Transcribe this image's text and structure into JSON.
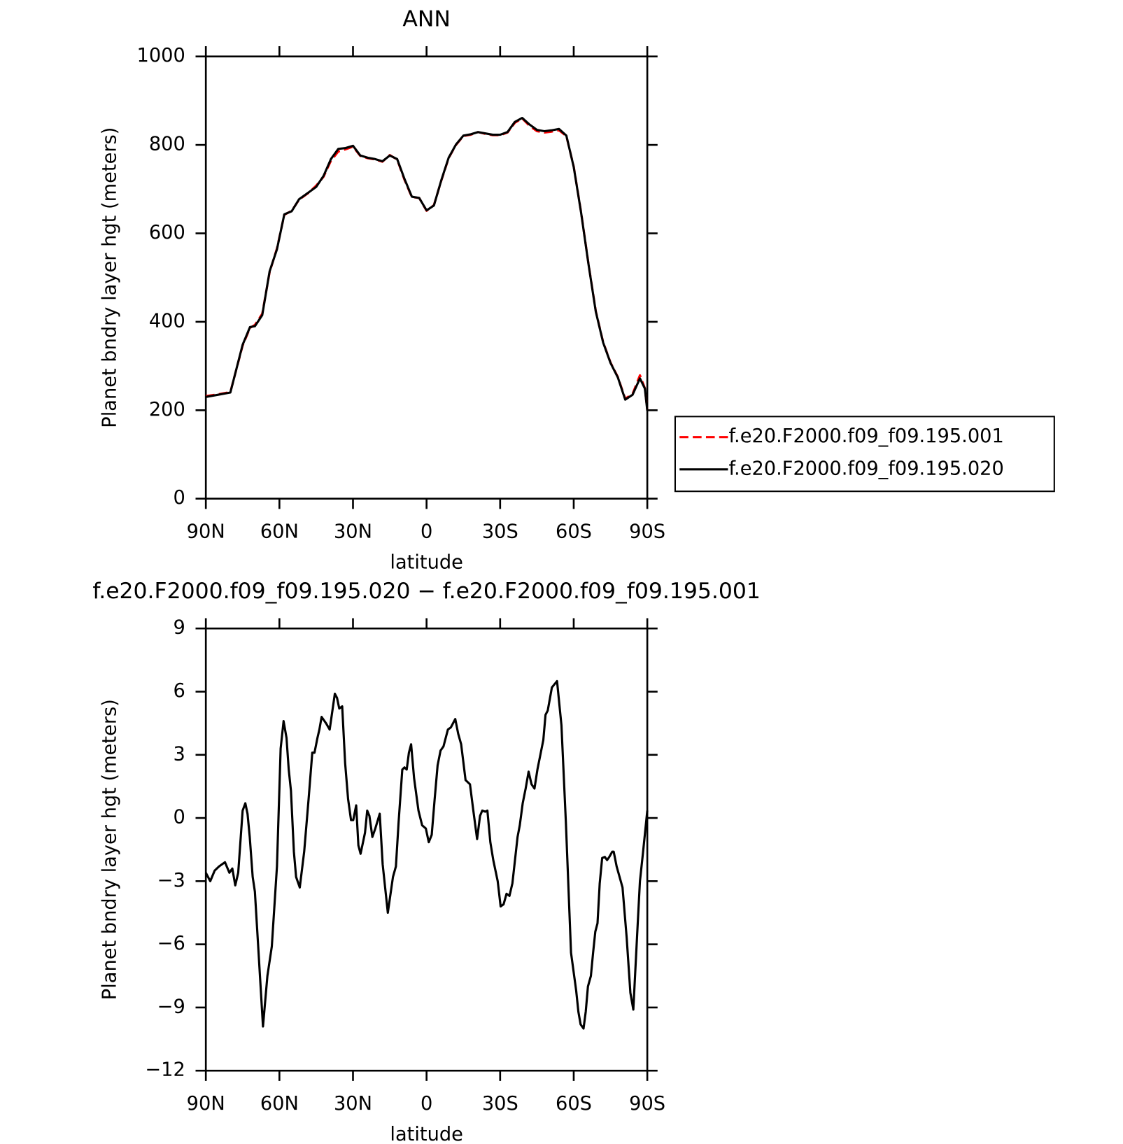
{
  "chart_data": [
    {
      "type": "line",
      "title": "ANN",
      "xlabel": "latitude",
      "ylabel": "Planet bndry layer hgt (meters)",
      "x": [
        90,
        85,
        80,
        75,
        72,
        70,
        67,
        64,
        61,
        58,
        55,
        52,
        48,
        45,
        42,
        39,
        36,
        33,
        30,
        27,
        24,
        21,
        18,
        15,
        12,
        9,
        6,
        3,
        0,
        -3,
        -6,
        -9,
        -12,
        -15,
        -18,
        -21,
        -24,
        -27,
        -30,
        -33,
        -36,
        -39,
        -42,
        -45,
        -48,
        -51,
        -54,
        -57,
        -60,
        -63,
        -66,
        -69,
        -72,
        -75,
        -78,
        -81,
        -84,
        -87,
        -89,
        -90
      ],
      "series": [
        {
          "name": "f.e20.F2000.f09_f09.195.001",
          "color": "#ff0000",
          "line_style": "dashed",
          "values": [
            232,
            236,
            241,
            346,
            386,
            393,
            418,
            512,
            566,
            642,
            651,
            676,
            692,
            708,
            728,
            764,
            785,
            790,
            796,
            775,
            770,
            767,
            762,
            777,
            767,
            721,
            682,
            680,
            651,
            664,
            719,
            770,
            800,
            820,
            823,
            829,
            825,
            822,
            822,
            828,
            850,
            860,
            843,
            831,
            828,
            830,
            833,
            820,
            751,
            648,
            532,
            424,
            354,
            308,
            275,
            226,
            237,
            279,
            250,
            200
          ]
        },
        {
          "name": "f.e20.F2000.f09_f09.195.020",
          "color": "#000000",
          "line_style": "solid",
          "values": [
            230,
            235,
            240,
            348,
            388,
            390,
            415,
            514,
            564,
            643,
            650,
            677,
            693,
            705,
            730,
            768,
            791,
            793,
            798,
            776,
            771,
            768,
            763,
            776,
            768,
            723,
            683,
            680,
            652,
            663,
            720,
            771,
            801,
            821,
            824,
            829,
            826,
            823,
            823,
            829,
            852,
            861,
            846,
            834,
            831,
            833,
            836,
            821,
            750,
            647,
            531,
            423,
            353,
            307,
            274,
            224,
            235,
            272,
            249,
            199
          ]
        }
      ],
      "xlim": [
        90,
        -90
      ],
      "xticks": [
        {
          "value": 90,
          "label": "90N"
        },
        {
          "value": 60,
          "label": "60N"
        },
        {
          "value": 30,
          "label": "30N"
        },
        0,
        {
          "value": -30,
          "label": "30S"
        },
        {
          "value": -60,
          "label": "60S"
        },
        {
          "value": -90,
          "label": "90S"
        }
      ],
      "ylim": [
        0,
        1000
      ],
      "yticks": [
        0,
        200,
        400,
        600,
        800,
        1000
      ],
      "legend": "right"
    },
    {
      "type": "line",
      "title": "f.e20.F2000.f09_f09.195.020 − f.e20.F2000.f09_f09.195.001",
      "xlabel": "latitude",
      "ylabel": "Planet bndry layer hgt (meters)",
      "x": [
        90,
        88.2,
        86.4,
        84.6,
        82.2,
        80.4,
        79.2,
        78.0,
        76.8,
        75.0,
        73.9,
        73.0,
        72.1,
        70.9,
        70.0,
        68.5,
        66.7,
        64.9,
        63.1,
        61.0,
        59.5,
        58.3,
        57.1,
        56.2,
        55.3,
        54.1,
        53.2,
        51.7,
        49.9,
        48.1,
        46.6,
        45.7,
        44.5,
        43.7,
        42.8,
        41.0,
        39.5,
        37.4,
        36.5,
        35.6,
        34.4,
        33.2,
        32.0,
        30.8,
        29.9,
        28.7,
        27.8,
        26.9,
        25.1,
        24.2,
        23.3,
        22.1,
        20.9,
        19.1,
        17.9,
        15.8,
        13.7,
        12.5,
        11.4,
        9.9,
        9.0,
        8.1,
        7.2,
        6.3,
        5.1,
        3.3,
        1.8,
        0.3,
        -0.9,
        -2.1,
        -3.3,
        -4.5,
        -5.7,
        -6.9,
        -8.7,
        -9.9,
        -11.7,
        -12.9,
        -14.1,
        -15.9,
        -17.7,
        -18.9,
        -20.6,
        -21.8,
        -22.7,
        -23.9,
        -24.8,
        -26.0,
        -27.2,
        -29.0,
        -30.2,
        -31.4,
        -32.6,
        -33.8,
        -35.0,
        -37.1,
        -38.0,
        -39.2,
        -40.4,
        -41.6,
        -42.8,
        -44.0,
        -45.2,
        -47.6,
        -48.5,
        -49.4,
        -51.1,
        -53.2,
        -55.0,
        -56.8,
        -58.9,
        -61.0,
        -61.9,
        -62.8,
        -64.0,
        -64.9,
        -65.8,
        -67.0,
        -67.9,
        -68.8,
        -69.7,
        -70.6,
        -71.6,
        -72.7,
        -73.6,
        -74.5,
        -75.7,
        -76.3,
        -77.5,
        -79.9,
        -81.6,
        -83.1,
        -84.3,
        -86.1,
        -87.0,
        -88.2,
        -90
      ],
      "series": [
        {
          "color": "#000000",
          "line_style": "solid",
          "values": [
            -2.6,
            -3.0,
            -2.5,
            -2.3,
            -2.1,
            -2.6,
            -2.4,
            -3.2,
            -2.6,
            0.35,
            0.7,
            0.2,
            -0.9,
            -2.8,
            -3.5,
            -6.4,
            -9.9,
            -7.5,
            -6.1,
            -2.3,
            3.3,
            4.6,
            3.8,
            2.3,
            1.3,
            -1.6,
            -2.8,
            -3.3,
            -1.6,
            0.9,
            3.1,
            3.1,
            3.8,
            4.2,
            4.8,
            4.5,
            4.2,
            5.9,
            5.7,
            5.2,
            5.3,
            2.6,
            0.9,
            -0.1,
            -0.1,
            0.6,
            -1.3,
            -1.7,
            -0.7,
            0.35,
            0.1,
            -0.9,
            -0.5,
            0.2,
            -2.2,
            -4.5,
            -2.8,
            -2.3,
            -0.2,
            2.3,
            2.4,
            2.3,
            3.1,
            3.5,
            1.9,
            0.35,
            -0.35,
            -0.5,
            -1.15,
            -0.8,
            0.9,
            2.5,
            3.2,
            3.4,
            4.2,
            4.3,
            4.7,
            4.0,
            3.5,
            1.8,
            1.6,
            0.5,
            -1.0,
            0.1,
            0.35,
            0.3,
            0.35,
            -1.15,
            -2.0,
            -3.0,
            -4.2,
            -4.1,
            -3.6,
            -3.7,
            -3.1,
            -0.9,
            -0.35,
            0.7,
            1.4,
            2.2,
            1.6,
            1.4,
            2.3,
            3.7,
            4.9,
            5.1,
            6.2,
            6.5,
            4.4,
            -0.2,
            -6.4,
            -8.2,
            -9.2,
            -9.8,
            -10.0,
            -9.2,
            -8.0,
            -7.5,
            -6.4,
            -5.4,
            -5.0,
            -3.1,
            -1.9,
            -1.85,
            -2.0,
            -1.85,
            -1.6,
            -1.6,
            -2.3,
            -3.3,
            -5.7,
            -8.3,
            -9.1,
            -5.0,
            -3.0,
            -1.7,
            0.35
          ]
        }
      ],
      "xlim": [
        90,
        -90
      ],
      "xticks": [
        {
          "value": 90,
          "label": "90N"
        },
        {
          "value": 60,
          "label": "60N"
        },
        {
          "value": 30,
          "label": "30N"
        },
        0,
        {
          "value": -30,
          "label": "30S"
        },
        {
          "value": -60,
          "label": "60S"
        },
        {
          "value": -90,
          "label": "90S"
        }
      ],
      "ylim": [
        -12,
        9
      ],
      "yticks": [
        {
          "value": -12,
          "label": "−12"
        },
        {
          "value": -9,
          "label": "−9"
        },
        {
          "value": -6,
          "label": "−6"
        },
        {
          "value": -3,
          "label": "−3"
        },
        0,
        3,
        6,
        9
      ]
    }
  ]
}
